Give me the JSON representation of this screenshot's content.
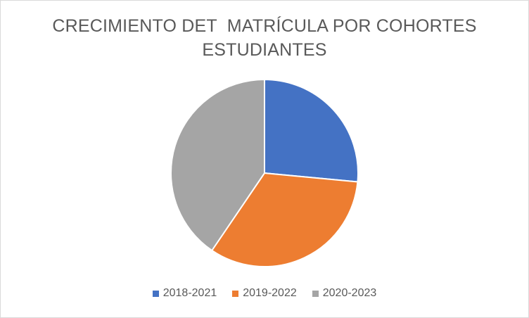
{
  "chart_data": {
    "type": "pie",
    "title_lines": [
      "CRECIMIENTO DET  MATRÍCULA POR COHORTES",
      "ESTUDIANTES"
    ],
    "categories": [
      "2018-2021",
      "2019-2022",
      "2020-2023"
    ],
    "values": [
      26.5,
      33.0,
      40.5
    ],
    "colors": [
      "#4472c4",
      "#ed7d31",
      "#a5a5a5"
    ],
    "legend_position": "bottom",
    "start_angle": "top"
  }
}
